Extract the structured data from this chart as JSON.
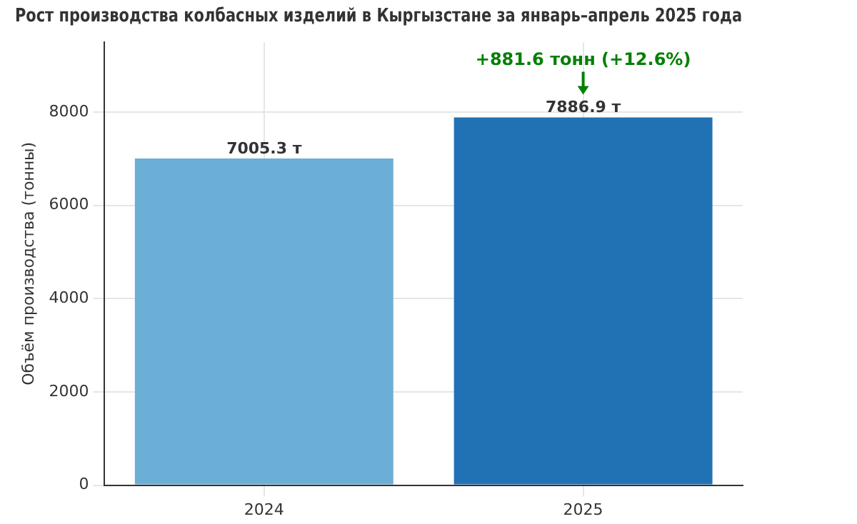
{
  "chart_data": {
    "type": "bar",
    "title": "Рост производства колбасных изделий в Кыргызстане за январь–апрель 2025 года",
    "ylabel": "Объём производства (тонны)",
    "categories": [
      "2024",
      "2025"
    ],
    "values": [
      7005.3,
      7886.9
    ],
    "colors": [
      "#6baed6",
      "#2171b5"
    ],
    "value_labels": [
      "7005.3 т",
      "7886.9 т"
    ],
    "ylim": [
      0,
      9500
    ],
    "yticks": [
      0,
      2000,
      4000,
      6000,
      8000
    ],
    "grid": true,
    "legend": false,
    "annotations": [
      {
        "text": "+881.6 тонн (+12.6%)",
        "x": "2025",
        "y": 7886.9
      }
    ]
  }
}
